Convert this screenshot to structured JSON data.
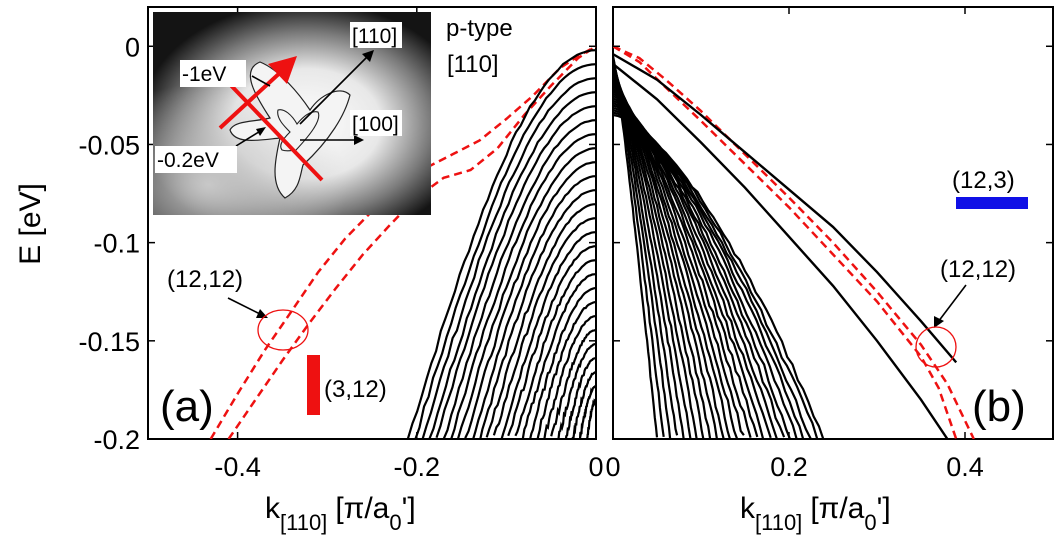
{
  "figure": {
    "y_axis_label_main": "E [eV]",
    "x_axis_label_prefix": "k",
    "x_axis_label_subscript": "[110]",
    "x_axis_label_units_a": "[π/a",
    "x_axis_label_units_sub": "0",
    "x_axis_label_units_b": "']"
  },
  "inset": {
    "label_110": "[110]",
    "label_100": "[100]",
    "label_minus1": "-1eV",
    "label_minus02": "-0.2eV"
  },
  "chart_data": [
    {
      "type": "line",
      "panel_label": "(a)",
      "title": "",
      "annotation_top": [
        "p-type",
        "[110]"
      ],
      "xlabel": "k[110] [π/a0']",
      "ylabel": "E [eV]",
      "xlim": [
        -0.5,
        0.0
      ],
      "ylim": [
        -0.2,
        0.02
      ],
      "xticks": [
        -0.4,
        -0.2,
        0
      ],
      "xtick_labels": [
        "-0.4",
        "-0.2",
        "0"
      ],
      "yticks": [
        0,
        -0.05,
        -0.1,
        -0.15,
        -0.2
      ],
      "ytick_labels": [
        "0",
        "-0.05",
        "-0.1",
        "-0.15",
        "-0.2"
      ],
      "annotations": [
        {
          "text": "(12,12)",
          "points_to": [
            -0.343,
            -0.148
          ]
        },
        {
          "text": "(3,12)",
          "legend_color": "#ee1111",
          "legend_shape": "vertical-bar"
        }
      ],
      "series": [
        {
          "name": "(12,12)",
          "color": "#ee1111",
          "style": "dashed",
          "x": [
            -0.43,
            -0.4,
            -0.37,
            -0.34,
            -0.31,
            -0.28,
            -0.25,
            -0.22,
            -0.19,
            -0.16,
            -0.13,
            -0.1,
            -0.07,
            -0.04,
            -0.02,
            0.0
          ],
          "y": [
            -0.2,
            -0.177,
            -0.155,
            -0.135,
            -0.115,
            -0.098,
            -0.084,
            -0.071,
            -0.062,
            -0.055,
            -0.048,
            -0.037,
            -0.025,
            -0.011,
            -0.005,
            0.0
          ]
        },
        {
          "name": "(12,12)",
          "color": "#ee1111",
          "style": "dashed",
          "x": [
            -0.41,
            -0.38,
            -0.35,
            -0.32,
            -0.29,
            -0.26,
            -0.23,
            -0.2,
            -0.17,
            -0.14,
            -0.11,
            -0.08,
            -0.05,
            -0.02,
            0.0
          ],
          "y": [
            -0.2,
            -0.18,
            -0.16,
            -0.141,
            -0.123,
            -0.106,
            -0.091,
            -0.077,
            -0.067,
            -0.063,
            -0.052,
            -0.035,
            -0.02,
            -0.006,
            0.0
          ]
        },
        {
          "name": "(3,12)",
          "color": "#000000",
          "style": "solid-bundle",
          "x_start_range": [
            -0.21,
            -0.01
          ],
          "x_end": 0.0,
          "y_top_range": [
            -0.002,
            -0.2
          ]
        }
      ]
    },
    {
      "type": "line",
      "panel_label": "(b)",
      "title": "",
      "xlabel": "k[110] [π/a0']",
      "ylabel": "",
      "xlim": [
        0.0,
        0.5
      ],
      "ylim": [
        -0.2,
        0.02
      ],
      "xticks": [
        0,
        0.2,
        0.4
      ],
      "xtick_labels": [
        "0",
        "0.2",
        "0.4"
      ],
      "annotations": [
        {
          "text": "(12,3)",
          "legend_color": "#1010e6",
          "legend_shape": "horizontal-bar"
        },
        {
          "text": "(12,12)",
          "points_to": [
            0.36,
            -0.151
          ]
        }
      ],
      "series": [
        {
          "name": "(12,12)",
          "color": "#ee1111",
          "style": "dashed",
          "x": [
            0.0,
            0.03,
            0.06,
            0.1,
            0.15,
            0.2,
            0.25,
            0.3,
            0.35,
            0.38,
            0.41
          ],
          "y": [
            0.0,
            -0.006,
            -0.017,
            -0.033,
            -0.055,
            -0.077,
            -0.1,
            -0.125,
            -0.152,
            -0.172,
            -0.2
          ]
        },
        {
          "name": "(12,12)",
          "color": "#ee1111",
          "style": "dashed",
          "x": [
            0.0,
            0.03,
            0.06,
            0.1,
            0.15,
            0.2,
            0.25,
            0.3,
            0.35,
            0.37,
            0.39
          ],
          "y": [
            0.0,
            -0.008,
            -0.021,
            -0.038,
            -0.06,
            -0.082,
            -0.106,
            -0.13,
            -0.158,
            -0.174,
            -0.2
          ]
        },
        {
          "name": "(12,3)",
          "color": "#000000",
          "style": "solid",
          "x": [
            0.0,
            0.05,
            0.1,
            0.15,
            0.2,
            0.25,
            0.3,
            0.35,
            0.39
          ],
          "y": [
            -0.004,
            -0.017,
            -0.035,
            -0.054,
            -0.073,
            -0.092,
            -0.115,
            -0.14,
            -0.161
          ]
        },
        {
          "name": "(12,3)",
          "color": "#000000",
          "style": "solid",
          "x": [
            0.0,
            0.05,
            0.1,
            0.15,
            0.2,
            0.25,
            0.3,
            0.35,
            0.38
          ],
          "y": [
            -0.009,
            -0.027,
            -0.049,
            -0.072,
            -0.097,
            -0.122,
            -0.15,
            -0.18,
            -0.2
          ]
        },
        {
          "name": "(12,3)",
          "color": "#000000",
          "style": "solid-bundle",
          "x_start": 0.0,
          "x_end_range": [
            0.05,
            0.24
          ],
          "y_top_range": [
            -0.005,
            -0.035
          ]
        }
      ]
    }
  ]
}
